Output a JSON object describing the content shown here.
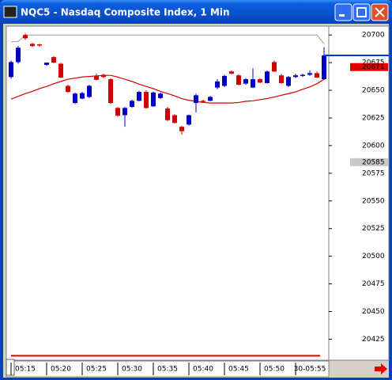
{
  "chart_data": {
    "type": "candlestick",
    "title": "NQC5 - Nasdaq Composite Index, 1 Min",
    "categories": [
      null,
      null,
      "05:15",
      null,
      null,
      null,
      null,
      "05:20",
      null,
      null,
      null,
      null,
      "05:25",
      null,
      null,
      null,
      null,
      "05:30",
      null,
      null,
      null,
      null,
      "05:35",
      null,
      null,
      null,
      null,
      "05:40",
      null,
      null,
      null,
      null,
      "05:45",
      null,
      null,
      null,
      null,
      "05:50",
      null,
      null,
      null,
      null,
      "30-05:55",
      null,
      null
    ],
    "open": [
      20662,
      20675.5,
      20700,
      20692,
      20691.5,
      20673,
      20680,
      20674,
      20654,
      20638.5,
      20642.5,
      20644,
      20663,
      20664,
      20660,
      20634,
      20627.5,
      20635,
      20640.5,
      20648.5,
      20635.5,
      20643,
      20633.5,
      20627.5,
      20617,
      20619,
      20638.5,
      20640.5,
      20640.5,
      20652.5,
      20654,
      20667,
      20663.5,
      20656,
      20652.5,
      20660,
      20656.5,
      20675.5,
      20663.5,
      20654,
      20662,
      20663,
      20664,
      20665.5,
      20660
    ],
    "high": [
      20677,
      20690,
      20701.5,
      20693,
      20692,
      20675,
      20681,
      20675,
      20655,
      20648,
      20648.5,
      20655,
      20665,
      20665,
      20661,
      20635,
      20635,
      20641.5,
      20649.5,
      20650,
      20649,
      20648,
      20635,
      20628.5,
      20618,
      20628,
      20647,
      20641.5,
      20645,
      20660,
      20664,
      20668,
      20664.5,
      20661,
      20670,
      20661,
      20668,
      20677,
      20665,
      20663,
      20665,
      20665,
      20668,
      20667,
      20689
    ],
    "low": [
      20660.5,
      20674,
      20695.5,
      20689,
      20689.5,
      20672,
      20674.5,
      20661,
      20648,
      20637.5,
      20642,
      20643,
      20659,
      20661,
      20637.5,
      20626,
      20617,
      20634,
      20640,
      20633.5,
      20635,
      20642,
      20622,
      20620,
      20610,
      20618,
      20630,
      20639,
      20640,
      20651,
      20653,
      20664.5,
      20654.5,
      20655,
      20652,
      20656.5,
      20656,
      20666.5,
      20656,
      20653,
      20661,
      20662,
      20663,
      20661,
      20659.5
    ],
    "close": [
      20675.5,
      20688.5,
      20697,
      20690,
      20690.5,
      20675,
      20675,
      20661.5,
      20648.5,
      20647,
      20647.5,
      20654,
      20659.5,
      20662,
      20638.5,
      20627,
      20634,
      20640.5,
      20648.5,
      20634,
      20648,
      20647,
      20623,
      20620.5,
      20613,
      20627.5,
      20645.5,
      20640,
      20644,
      20658,
      20663,
      20665,
      20655,
      20660,
      20660,
      20657,
      20667,
      20667,
      20656.5,
      20662,
      20663.5,
      20664,
      20665.5,
      20661.5,
      20681.5
    ],
    "up_color": "#0000c0",
    "down_color": "#d00000",
    "ma": {
      "color": "#d00000",
      "values": [
        20642,
        20644.5,
        20647,
        20649,
        20651.5,
        20653.5,
        20656,
        20658,
        20660,
        20661,
        20662,
        20662.5,
        20663,
        20663.5,
        20663.5,
        20662,
        20660,
        20658,
        20655.5,
        20653.5,
        20651.5,
        20649,
        20647,
        20645,
        20642.5,
        20641,
        20640,
        20639,
        20638.5,
        20638.5,
        20638.5,
        20638.5,
        20639,
        20640,
        20640.5,
        20641.5,
        20642.5,
        20644,
        20645.5,
        20647,
        20648.5,
        20651,
        20653,
        20656,
        20660
      ]
    },
    "band": {
      "color": "#a8a8a8",
      "values": [
        20694,
        20694,
        20700,
        20700,
        20700,
        20700,
        20700,
        20700,
        20700,
        20700,
        20700,
        20700,
        20700,
        20700,
        20700,
        20700,
        20700,
        20700,
        20700,
        20700,
        20700,
        20700,
        20700,
        20700,
        20700,
        20700,
        20700,
        20700,
        20700,
        20700,
        20700,
        20700,
        20700,
        20700,
        20700,
        20700,
        20700,
        20700,
        20700,
        20700,
        20700,
        20700,
        20700,
        20700,
        20692
      ]
    },
    "floor_line": {
      "value": 20410,
      "color": "#e00000"
    },
    "last_color": "#0030ff",
    "markers": [
      {
        "value": 20671,
        "color": "#e00000"
      },
      {
        "value": 20585,
        "color": "#c8c8c8"
      }
    ],
    "ylim": [
      20406,
      20708
    ],
    "yticks": [
      20425,
      20450,
      20475,
      20500,
      20525,
      20550,
      20575,
      20600,
      20625,
      20650,
      20675,
      20700
    ]
  }
}
